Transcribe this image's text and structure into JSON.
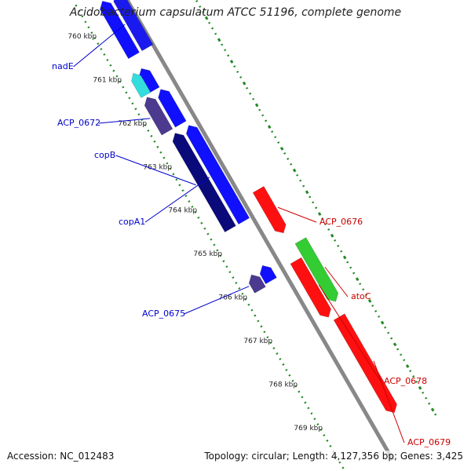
{
  "title": "Acidobacterium capsulatum ATCC 51196, complete genome",
  "footer": {
    "accession": "Accession: NC_012483",
    "summary": "Topology: circular; Length: 4,127,356 bp; Genes: 3,425"
  },
  "scale": [
    {
      "label": "760 kbp",
      "pos_kbp": 760
    },
    {
      "label": "761 kbp",
      "pos_kbp": 761
    },
    {
      "label": "762 kbp",
      "pos_kbp": 762
    },
    {
      "label": "763 kbp",
      "pos_kbp": 763
    },
    {
      "label": "764 kbp",
      "pos_kbp": 764
    },
    {
      "label": "765 kbp",
      "pos_kbp": 765
    },
    {
      "label": "766 kbp",
      "pos_kbp": 766
    },
    {
      "label": "767 kbp",
      "pos_kbp": 767
    },
    {
      "label": "768 kbp",
      "pos_kbp": 768
    },
    {
      "label": "769 kbp",
      "pos_kbp": 769
    }
  ],
  "genes": [
    {
      "label": "",
      "start_kbp": 759.7,
      "end_kbp": 760.95,
      "strand": "reverse",
      "color": "#1010ff"
    },
    {
      "label": "nadE",
      "start_kbp": 759.7,
      "end_kbp": 760.95,
      "strand": "reverse",
      "color": "#1a1aee"
    },
    {
      "label": "",
      "start_kbp": 761.25,
      "end_kbp": 761.75,
      "strand": "reverse",
      "color": "#1010ff"
    },
    {
      "label": "",
      "start_kbp": 761.25,
      "end_kbp": 761.75,
      "strand": "reverse",
      "color": "#33dddd"
    },
    {
      "label": "ACP_0672",
      "start_kbp": 761.8,
      "end_kbp": 762.6,
      "strand": "reverse",
      "color": "#4b3a8f"
    },
    {
      "label": "",
      "start_kbp": 761.8,
      "end_kbp": 762.6,
      "strand": "reverse",
      "color": "#1010ff"
    },
    {
      "label": "copB",
      "start_kbp": 762.7,
      "end_kbp": 764.9,
      "strand": "reverse",
      "color": "#0a0a7a"
    },
    {
      "label": "copA1",
      "start_kbp": 762.7,
      "end_kbp": 764.9,
      "strand": "reverse",
      "color": "#1010ff"
    },
    {
      "label": "ACP_0675",
      "start_kbp": 765.9,
      "end_kbp": 766.25,
      "strand": "reverse",
      "color": "#4b3a8f"
    },
    {
      "label": "",
      "start_kbp": 765.85,
      "end_kbp": 766.2,
      "strand": "reverse",
      "color": "#1010ff"
    },
    {
      "label": "ACP_0676",
      "start_kbp": 764.5,
      "end_kbp": 765.5,
      "strand": "forward",
      "color": "#ff1010"
    },
    {
      "label": "atoC",
      "start_kbp": 765.8,
      "end_kbp": 767.2,
      "strand": "forward",
      "color": "#33cc33"
    },
    {
      "label": "ACP_0678",
      "start_kbp": 766.1,
      "end_kbp": 767.4,
      "strand": "forward",
      "color": "#ff1010"
    },
    {
      "label": "ACP_0679",
      "start_kbp": 767.5,
      "end_kbp": 769.7,
      "strand": "forward",
      "color": "#ff1010"
    }
  ],
  "colors": {
    "backbone": "#888888",
    "ticks": "#228822",
    "reverse_label": "#0000cc",
    "forward_label": "#cc0000"
  }
}
